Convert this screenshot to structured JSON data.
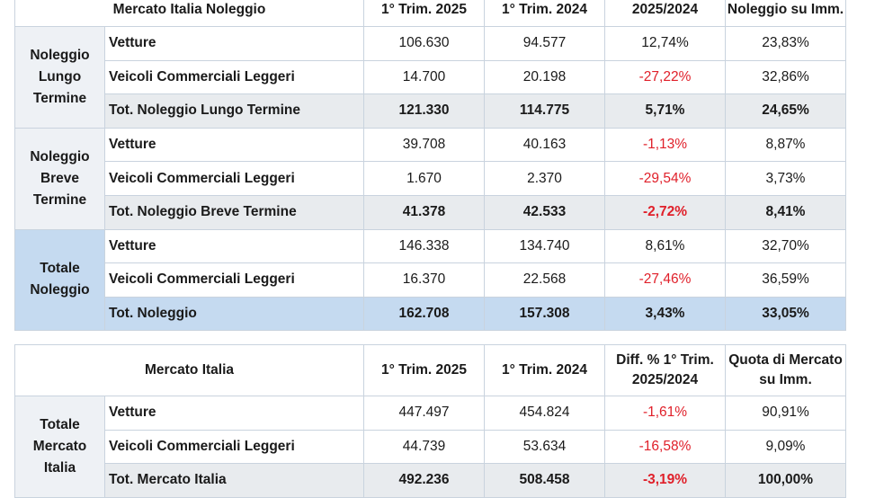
{
  "table1": {
    "header": [
      "Mercato Italia Noleggio",
      "1° Trim. 2025",
      "1° Trim. 2024",
      "2025/2024",
      "Noleggio su Imm."
    ],
    "groups": [
      {
        "label": "Noleggio Lungo Termine",
        "style": "gray",
        "rows": [
          {
            "label": "Vetture",
            "v2025": "106.630",
            "v2024": "94.577",
            "diff": "12,74%",
            "diff_negative": false,
            "quota": "23,83%"
          },
          {
            "label": "Veicoli Commerciali Leggeri",
            "v2025": "14.700",
            "v2024": "20.198",
            "diff": "-27,22%",
            "diff_negative": true,
            "quota": "32,86%"
          },
          {
            "label": "Tot. Noleggio Lungo Termine",
            "v2025": "121.330",
            "v2024": "114.775",
            "diff": "5,71%",
            "diff_negative": false,
            "quota": "24,65%",
            "total": true
          }
        ]
      },
      {
        "label": "Noleggio Breve Termine",
        "style": "gray",
        "rows": [
          {
            "label": "Vetture",
            "v2025": "39.708",
            "v2024": "40.163",
            "diff": "-1,13%",
            "diff_negative": true,
            "quota": "8,87%"
          },
          {
            "label": "Veicoli Commerciali Leggeri",
            "v2025": "1.670",
            "v2024": "2.370",
            "diff": "-29,54%",
            "diff_negative": true,
            "quota": "3,73%"
          },
          {
            "label": "Tot. Noleggio Breve Termine",
            "v2025": "41.378",
            "v2024": "42.533",
            "diff": "-2,72%",
            "diff_negative": true,
            "quota": "8,41%",
            "total": true
          }
        ]
      },
      {
        "label": "Totale Noleggio",
        "style": "blue",
        "rows": [
          {
            "label": "Vetture",
            "v2025": "146.338",
            "v2024": "134.740",
            "diff": "8,61%",
            "diff_negative": false,
            "quota": "32,70%"
          },
          {
            "label": "Veicoli Commerciali Leggeri",
            "v2025": "16.370",
            "v2024": "22.568",
            "diff": "-27,46%",
            "diff_negative": true,
            "quota": "36,59%"
          },
          {
            "label": "Tot. Noleggio",
            "v2025": "162.708",
            "v2024": "157.308",
            "diff": "3,43%",
            "diff_negative": false,
            "quota": "33,05%",
            "total": true
          }
        ]
      }
    ]
  },
  "table2": {
    "header": [
      "Mercato Italia",
      "1° Trim. 2025",
      "1° Trim. 2024",
      "Diff. % 1° Trim. 2025/2024",
      "Quota di Mercato su Imm."
    ],
    "groups": [
      {
        "label": "Totale Mercato Italia",
        "style": "gray",
        "rows": [
          {
            "label": "Vetture",
            "v2025": "447.497",
            "v2024": "454.824",
            "diff": "-1,61%",
            "diff_negative": true,
            "quota": "90,91%"
          },
          {
            "label": "Veicoli Commerciali Leggeri",
            "v2025": "44.739",
            "v2024": "53.634",
            "diff": "-16,58%",
            "diff_negative": true,
            "quota": "9,09%"
          },
          {
            "label": "Tot. Mercato Italia",
            "v2025": "492.236",
            "v2024": "508.458",
            "diff": "-3,19%",
            "diff_negative": true,
            "quota": "100,00%",
            "total": true
          }
        ]
      }
    ]
  }
}
